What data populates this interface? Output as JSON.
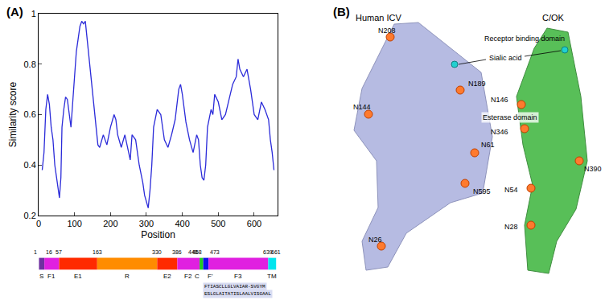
{
  "panel_labels": [
    "(A)",
    "(B)"
  ],
  "chart_data": {
    "type": "line",
    "x_label": "Position",
    "y_label": "Similarity score",
    "color": "#2b2bd9",
    "grid": false,
    "x": [
      10,
      15,
      20,
      25,
      30,
      35,
      40,
      45,
      50,
      55,
      58,
      62,
      65,
      70,
      75,
      80,
      85,
      90,
      95,
      100,
      105,
      110,
      115,
      120,
      125,
      130,
      135,
      140,
      145,
      150,
      155,
      160,
      165,
      170,
      180,
      190,
      200,
      210,
      215,
      220,
      230,
      240,
      250,
      255,
      260,
      270,
      280,
      290,
      295,
      300,
      305,
      310,
      315,
      320,
      330,
      340,
      345,
      350,
      360,
      370,
      380,
      390,
      395,
      400,
      410,
      420,
      430,
      440,
      445,
      450,
      455,
      460,
      465,
      470,
      480,
      485,
      490,
      500,
      510,
      520,
      530,
      540,
      550,
      555,
      560,
      570,
      580,
      590,
      600,
      610,
      620,
      630,
      640,
      645,
      650,
      655
    ],
    "values": [
      0.38,
      0.45,
      0.62,
      0.68,
      0.64,
      0.55,
      0.5,
      0.4,
      0.35,
      0.3,
      0.27,
      0.35,
      0.55,
      0.62,
      0.67,
      0.66,
      0.6,
      0.55,
      0.65,
      0.75,
      0.85,
      0.9,
      0.95,
      0.97,
      0.96,
      0.97,
      0.9,
      0.85,
      0.78,
      0.7,
      0.62,
      0.55,
      0.48,
      0.47,
      0.52,
      0.48,
      0.55,
      0.6,
      0.58,
      0.52,
      0.47,
      0.52,
      0.46,
      0.42,
      0.52,
      0.5,
      0.4,
      0.33,
      0.28,
      0.25,
      0.23,
      0.3,
      0.4,
      0.55,
      0.62,
      0.6,
      0.55,
      0.5,
      0.47,
      0.52,
      0.58,
      0.7,
      0.72,
      0.68,
      0.57,
      0.5,
      0.45,
      0.52,
      0.5,
      0.4,
      0.35,
      0.34,
      0.4,
      0.55,
      0.62,
      0.6,
      0.68,
      0.65,
      0.58,
      0.6,
      0.66,
      0.72,
      0.75,
      0.82,
      0.78,
      0.75,
      0.78,
      0.7,
      0.6,
      0.58,
      0.65,
      0.62,
      0.58,
      0.5,
      0.45,
      0.38
    ],
    "xlim": [
      0,
      665
    ],
    "xticks": [
      0,
      100,
      200,
      300,
      400,
      500,
      600
    ],
    "ylim": [
      0.2,
      1
    ],
    "yticks": [
      0.2,
      0.4,
      0.6,
      0.8,
      1
    ]
  },
  "domains": {
    "boundaries": [
      1,
      16,
      57,
      163,
      330,
      386,
      448,
      458,
      473,
      639,
      661
    ],
    "segments": [
      {
        "name": "S",
        "color": "#7030a0"
      },
      {
        "name": "F1",
        "color": "#e020e0"
      },
      {
        "name": "E1",
        "color": "#ff2a00"
      },
      {
        "name": "R",
        "color": "#ff8c00"
      },
      {
        "name": "E2",
        "color": "#ff2a00"
      },
      {
        "name": "F2",
        "color": "#e020e0"
      },
      {
        "name": "C",
        "color": "#22cc22"
      },
      {
        "name": "F'",
        "color": "#1010ee"
      },
      {
        "name": "F3",
        "color": "#e020e0"
      },
      {
        "name": "TM",
        "color": "#00e5ee"
      }
    ],
    "alignment": [
      "FTIASCLLGLVAIAR-SVGYM",
      "ESLGLAITATISLAALVISGAAL"
    ]
  },
  "panel_b": {
    "structures": [
      {
        "title": "Human ICV",
        "color": "#aab0dd",
        "sites": [
          "N208",
          "N189",
          "N144",
          "N61",
          "N595",
          "N26"
        ]
      },
      {
        "title": "C/OK",
        "color": "#3cb43c",
        "sites": [
          "N146",
          "N346",
          "N390",
          "N54",
          "N28"
        ]
      }
    ],
    "annotations": [
      "Receptor binding domain",
      "Sialic acid",
      "Esterase domain"
    ]
  }
}
